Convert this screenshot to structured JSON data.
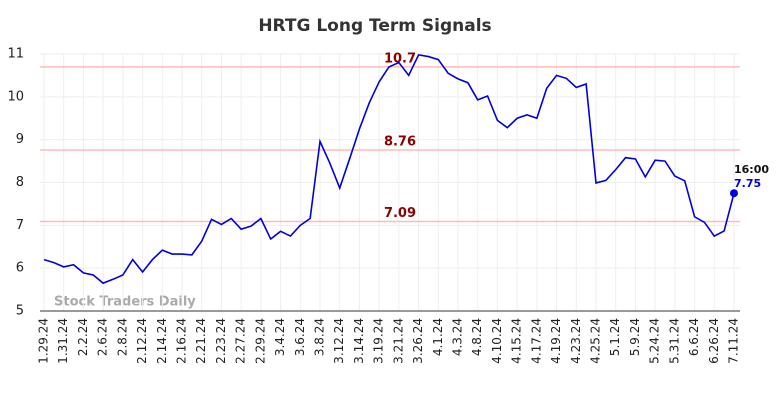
{
  "chart_data": {
    "type": "line",
    "title": "HRTG Long Term Signals",
    "categories": [
      "1.29.24",
      null,
      "1.31.24",
      null,
      "2.2.24",
      null,
      "2.6.24",
      null,
      "2.8.24",
      null,
      "2.12.24",
      null,
      "2.14.24",
      null,
      "2.16.24",
      null,
      "2.21.24",
      null,
      "2.23.24",
      null,
      "2.27.24",
      null,
      "2.29.24",
      null,
      "3.4.24",
      null,
      "3.6.24",
      null,
      "3.8.24",
      null,
      "3.12.24",
      null,
      "3.14.24",
      null,
      "3.19.24",
      null,
      "3.21.24",
      null,
      "3.26.24",
      null,
      "4.1.24",
      null,
      "4.3.24",
      null,
      "4.8.24",
      null,
      "4.10.24",
      null,
      "4.15.24",
      null,
      "4.17.24",
      null,
      "4.19.24",
      null,
      "4.23.24",
      null,
      "4.25.24",
      null,
      "5.1.24",
      null,
      "5.9.24",
      null,
      "5.24.24",
      null,
      "5.31.24",
      null,
      "6.6.24",
      null,
      "6.26.24",
      null,
      "7.11.24"
    ],
    "values": [
      6.2,
      6.13,
      6.03,
      6.08,
      5.89,
      5.84,
      5.65,
      5.74,
      5.84,
      6.2,
      5.91,
      6.2,
      6.42,
      6.33,
      6.33,
      6.31,
      6.63,
      7.14,
      7.02,
      7.16,
      6.91,
      6.98,
      7.16,
      6.68,
      6.86,
      6.75,
      7.0,
      7.16,
      8.96,
      8.45,
      7.87,
      8.55,
      9.25,
      9.86,
      10.35,
      10.7,
      10.8,
      10.5,
      10.98,
      10.94,
      10.87,
      10.55,
      10.42,
      10.33,
      9.93,
      10.02,
      9.45,
      9.28,
      9.5,
      9.58,
      9.5,
      10.2,
      10.5,
      10.43,
      10.22,
      10.3,
      7.99,
      8.05,
      8.3,
      8.58,
      8.55,
      8.13,
      8.52,
      8.5,
      8.15,
      8.04,
      7.2,
      7.07,
      6.75,
      6.87,
      7.75
    ],
    "color": "#0000dd",
    "ylim": [
      5,
      11
    ],
    "yticks": [
      5,
      6,
      7,
      8,
      9,
      10,
      11
    ],
    "grid": true,
    "reference_lines": [
      {
        "value": 10.7,
        "color": "#ffbbbb",
        "label_color": "#8b0000"
      },
      {
        "value": 8.76,
        "color": "#ffbbbb",
        "label_color": "#8b0000"
      },
      {
        "value": 7.09,
        "color": "#ffbbbb",
        "label_color": "#8b0000"
      }
    ],
    "last_point_time": "16:00",
    "watermark": "Stock Traders Daily"
  }
}
